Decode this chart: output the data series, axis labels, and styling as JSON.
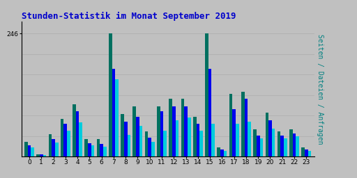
{
  "title": "Stunden-Statistik im Monat September 2019",
  "title_color": "#0000CC",
  "background_color": "#C0C0C0",
  "plot_bg_color": "#C0C0C0",
  "ytick_label": "246",
  "ylim": [
    0,
    270
  ],
  "hours": [
    0,
    1,
    2,
    3,
    4,
    5,
    6,
    7,
    8,
    9,
    10,
    11,
    12,
    13,
    14,
    15,
    16,
    17,
    18,
    19,
    20,
    21,
    22,
    23
  ],
  "green_bars": [
    30,
    5,
    45,
    75,
    105,
    35,
    35,
    246,
    85,
    100,
    50,
    100,
    115,
    115,
    80,
    246,
    18,
    125,
    130,
    55,
    88,
    50,
    55,
    18
  ],
  "blue_bars": [
    22,
    4,
    35,
    65,
    90,
    27,
    25,
    175,
    70,
    80,
    38,
    90,
    100,
    100,
    65,
    175,
    14,
    95,
    115,
    42,
    72,
    42,
    46,
    14
  ],
  "cyan_bars": [
    18,
    3,
    28,
    52,
    68,
    22,
    20,
    155,
    44,
    62,
    30,
    52,
    72,
    78,
    52,
    65,
    12,
    65,
    70,
    36,
    56,
    36,
    40,
    12
  ],
  "green_color": "#007060",
  "blue_color": "#0000EE",
  "cyan_color": "#00CCDD",
  "bar_width": 0.27,
  "grid_color": "#B0B0B0",
  "grid_values": [
    41,
    82,
    123,
    164,
    205,
    246
  ],
  "border_color": "#808080",
  "right_label_seiten": "Seiten",
  "right_label_slash1": " / ",
  "right_label_dateien": "Dateien",
  "right_label_slash2": " / ",
  "right_label_anfragen": "Anfragen",
  "right_label_color_seiten": "#008080",
  "right_label_color_dateien": "#0000CC",
  "right_label_color_anfragen": "#00BBCC",
  "right_label_color_slash": "#008080"
}
